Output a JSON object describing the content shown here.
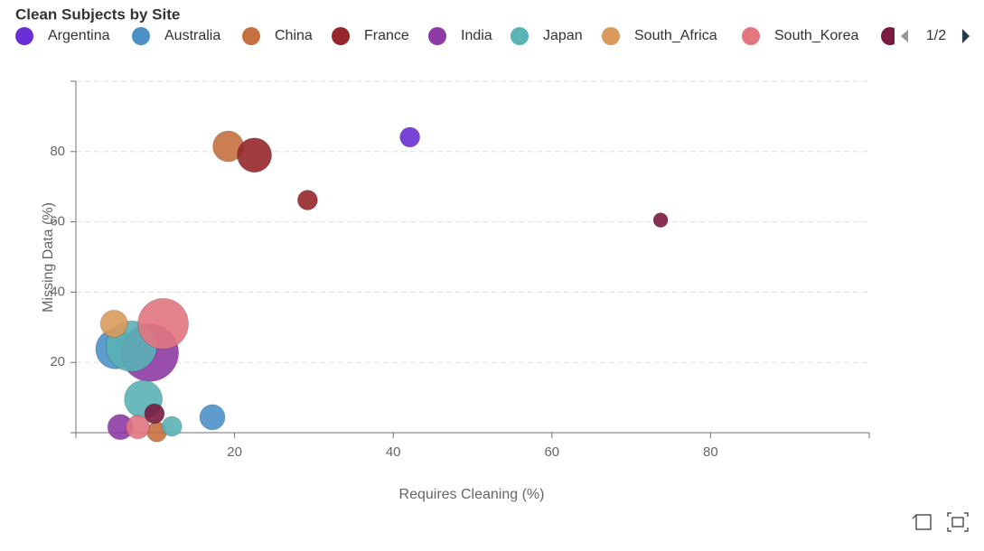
{
  "chart_data": {
    "type": "scatter",
    "title": "Clean Subjects by Site",
    "x_label": "Requires Cleaning (%)",
    "y_label": "Missing Data (%)",
    "xlim": [
      0,
      100
    ],
    "ylim": [
      0,
      100
    ],
    "xticks": [
      20,
      40,
      60,
      80
    ],
    "yticks": [
      20,
      40,
      60,
      80
    ],
    "grid": true,
    "legend_page": "1/2",
    "series": [
      {
        "name": "Argentina",
        "color": "#6a2fd4",
        "x": [
          42.1
        ],
        "values": [
          84.1
        ],
        "sizes": [
          11
        ]
      },
      {
        "name": "Australia",
        "color": "#4b91c6",
        "x": [
          5.0,
          17.2
        ],
        "values": [
          23.8,
          4.4
        ],
        "sizes": [
          22,
          14
        ]
      },
      {
        "name": "China",
        "color": "#c4703f",
        "x": [
          19.2,
          10.2
        ],
        "values": [
          81.5,
          0.2
        ],
        "sizes": [
          17,
          11
        ]
      },
      {
        "name": "France",
        "color": "#96262b",
        "x": [
          22.5,
          29.2
        ],
        "values": [
          79.0,
          66.2
        ],
        "sizes": [
          19,
          11
        ]
      },
      {
        "name": "India",
        "color": "#8e3ba5",
        "x": [
          9.3,
          5.6
        ],
        "values": [
          22.8,
          1.6
        ],
        "sizes": [
          32,
          14
        ]
      },
      {
        "name": "Japan",
        "color": "#5ab3b6",
        "x": [
          7.0,
          8.5,
          12.1
        ],
        "values": [
          24.6,
          9.5,
          1.8
        ],
        "sizes": [
          28,
          21,
          11
        ]
      },
      {
        "name": "South_Africa",
        "color": "#d99a5c",
        "x": [
          4.8
        ],
        "values": [
          31.0
        ],
        "sizes": [
          15
        ]
      },
      {
        "name": "South_Korea",
        "color": "#e27680",
        "x": [
          11.0,
          7.8
        ],
        "values": [
          31.0,
          1.6
        ],
        "sizes": [
          28,
          13
        ]
      },
      {
        "color": "#7a1a3e",
        "x": [
          73.7,
          9.9
        ],
        "values": [
          60.5,
          5.4
        ],
        "sizes": [
          8,
          11
        ]
      }
    ]
  }
}
